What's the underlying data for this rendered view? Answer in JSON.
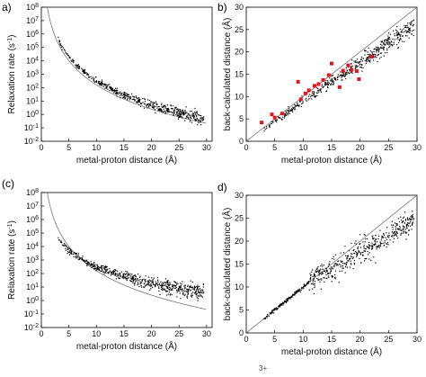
{
  "figure": {
    "caption_fragment": "3+"
  },
  "chart_data": [
    {
      "panel": "a)",
      "type": "scatter",
      "xlabel": "metal-proton distance (Å)",
      "ylabel_main": "Relaxation rate (s",
      "ylabel_sup": "-1",
      "ylabel_end": ")",
      "xlim": [
        0,
        31
      ],
      "ylim_exp": [
        -2,
        8
      ],
      "ylog": true,
      "xticks": [
        0,
        5,
        10,
        15,
        20,
        25,
        30
      ],
      "yticks_exp": [
        -2,
        -1,
        0,
        1,
        2,
        3,
        4,
        5,
        6,
        7,
        8
      ],
      "curve": {
        "K": 160000000.0,
        "power": 6,
        "x_from": 1.1,
        "x_to": 30
      },
      "scatter": {
        "K": 320000000.0,
        "power": 6,
        "x_from": 3.0,
        "x_to": 29.5,
        "count": 520,
        "scatter_log10": 0.12,
        "scatter_grows_with_x": true
      },
      "outliers": []
    },
    {
      "panel": "b)",
      "type": "scatter",
      "xlabel": "metal-proton distance (Å)",
      "ylabel": "back-calculated distance (Å)",
      "xlim": [
        0,
        30
      ],
      "ylim": [
        0,
        30
      ],
      "xticks": [
        0,
        5,
        10,
        15,
        20,
        25,
        30
      ],
      "yticks": [
        0,
        5,
        10,
        15,
        20,
        25,
        30
      ],
      "identity_line": true,
      "scatter": {
        "x_from": 3.0,
        "x_to": 29.5,
        "count": 520,
        "slope": 0.88,
        "spread": 0.9
      },
      "red_points": [
        [
          2.7,
          4.2
        ],
        [
          4.5,
          6.0
        ],
        [
          5.0,
          5.3
        ],
        [
          6.3,
          6.2
        ],
        [
          9.1,
          13.3
        ],
        [
          9.6,
          9.4
        ],
        [
          10.4,
          10.7
        ],
        [
          11.0,
          11.4
        ],
        [
          12.0,
          12.4
        ],
        [
          12.7,
          12.8
        ],
        [
          13.5,
          13.7
        ],
        [
          14.5,
          14.8
        ],
        [
          15.0,
          17.4
        ],
        [
          16.4,
          12.1
        ],
        [
          17.0,
          15.8
        ],
        [
          17.9,
          17.0
        ],
        [
          18.5,
          16.0
        ],
        [
          19.4,
          15.7
        ],
        [
          19.8,
          13.9
        ],
        [
          22.0,
          18.9
        ]
      ],
      "red_color": "#e8141b"
    },
    {
      "panel": "(c)",
      "type": "scatter",
      "xlabel": "metal-proton distance (Å)",
      "ylabel_main": "Relaxation rate (s",
      "ylabel_sup": "-1",
      "ylabel_end": ")",
      "xlim": [
        0,
        31
      ],
      "ylim_exp": [
        -2,
        8
      ],
      "ylog": true,
      "xticks": [
        0,
        5,
        10,
        15,
        20,
        25,
        30
      ],
      "yticks_exp": [
        -2,
        -1,
        0,
        1,
        2,
        3,
        4,
        5,
        6,
        7,
        8
      ],
      "curve": {
        "K": 160000000.0,
        "power": 6,
        "x_from": 1.1,
        "x_to": 30
      },
      "scatter": {
        "K": 4000000.0,
        "power": 4.1,
        "x_from": 3.0,
        "x_to": 29.5,
        "count": 600,
        "scatter_log10": 0.16,
        "scatter_grows_with_x": true
      },
      "outliers": []
    },
    {
      "panel": "d)",
      "type": "scatter",
      "xlabel": "metal-proton distance (Å)",
      "ylabel": "back-calculated distance (Å)",
      "xlim": [
        0,
        30
      ],
      "ylim": [
        0,
        30
      ],
      "xticks": [
        0,
        5,
        10,
        15,
        20,
        25,
        30
      ],
      "yticks": [
        0,
        5,
        10,
        15,
        20,
        25,
        30
      ],
      "identity_line": true,
      "scatter": {
        "x_from": 3.0,
        "x_to": 29.5,
        "count": 620,
        "knee_x": 11,
        "slope_after": 0.72,
        "spread": 1.4
      },
      "red_points": [],
      "red_color": "#e8141b"
    }
  ]
}
